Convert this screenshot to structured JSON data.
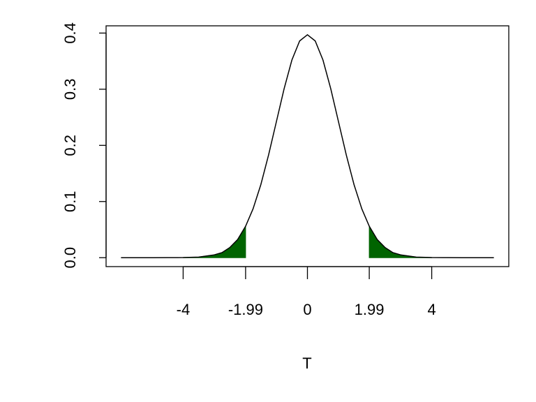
{
  "chart_data": {
    "type": "line",
    "x_label": "T",
    "x": [
      -6,
      -5.5,
      -5,
      -4.5,
      -4,
      -3.5,
      -3,
      -2.75,
      -2.5,
      -2.25,
      -1.99,
      -1.75,
      -1.5,
      -1.25,
      -1,
      -0.75,
      -0.5,
      -0.25,
      0,
      0.25,
      0.5,
      0.75,
      1,
      1.25,
      1.5,
      1.75,
      1.99,
      2.25,
      2.5,
      2.75,
      3,
      3.5,
      4,
      4.5,
      5,
      5.5,
      6
    ],
    "values": [
      0,
      0,
      0,
      0.0001,
      0.0002,
      0.001,
      0.005,
      0.009,
      0.018,
      0.032,
      0.056,
      0.087,
      0.13,
      0.183,
      0.242,
      0.301,
      0.352,
      0.386,
      0.397,
      0.386,
      0.352,
      0.301,
      0.242,
      0.183,
      0.13,
      0.087,
      0.056,
      0.032,
      0.018,
      0.009,
      0.005,
      0.001,
      0.0002,
      0.0001,
      0,
      0,
      0
    ],
    "color": "#000000",
    "shaded_regions": [
      [
        -4,
        -1.99
      ],
      [
        1.99,
        4
      ]
    ],
    "shade_color": "#006400",
    "xlim": [
      -6.48,
      6.48
    ],
    "ylim": [
      -0.0159,
      0.4129
    ],
    "xticks": [
      -4,
      -1.99,
      0,
      1.99,
      4
    ],
    "yticks": [
      {
        "value": 0,
        "label": "0.0"
      },
      0.1,
      0.2,
      0.3,
      0.4
    ]
  }
}
